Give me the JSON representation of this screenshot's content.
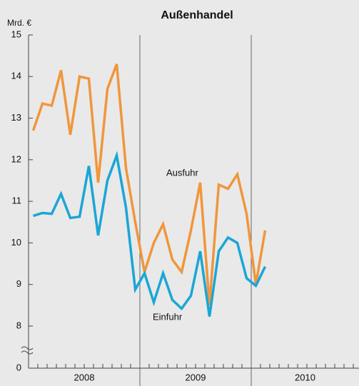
{
  "chart_data": {
    "type": "line",
    "title": "Außenhandel",
    "y_unit": "Mrd. €",
    "categories": [
      null,
      null,
      null,
      null,
      null,
      null,
      null,
      null,
      null,
      null,
      null,
      null,
      null,
      null,
      null,
      null,
      null,
      null,
      null,
      null,
      null,
      null,
      null,
      null,
      null,
      null
    ],
    "year_labels": [
      "2008",
      "2009",
      "2010"
    ],
    "series": [
      {
        "name": "Ausfuhr",
        "color": "#f0963c",
        "values": [
          12.7,
          13.35,
          13.3,
          14.15,
          12.6,
          14.0,
          13.95,
          11.45,
          13.7,
          14.3,
          11.8,
          10.5,
          9.3,
          10.0,
          10.45,
          9.6,
          9.3,
          10.3,
          11.45,
          8.5,
          11.4,
          11.3,
          11.65,
          10.7,
          9.0,
          10.3
        ]
      },
      {
        "name": "Einfuhr",
        "color": "#1aa6d6",
        "values": [
          10.65,
          10.72,
          10.7,
          11.18,
          10.6,
          10.63,
          11.85,
          10.18,
          11.5,
          12.1,
          10.85,
          8.88,
          9.27,
          8.57,
          9.27,
          8.63,
          8.42,
          8.73,
          9.8,
          8.23,
          9.8,
          10.13,
          10.0,
          9.15,
          8.97,
          9.43
        ]
      }
    ],
    "ylim": [
      0,
      15
    ],
    "y_break": [
      0,
      8
    ],
    "yticks": [
      0,
      8,
      9,
      10,
      11,
      12,
      13,
      14,
      15
    ]
  }
}
